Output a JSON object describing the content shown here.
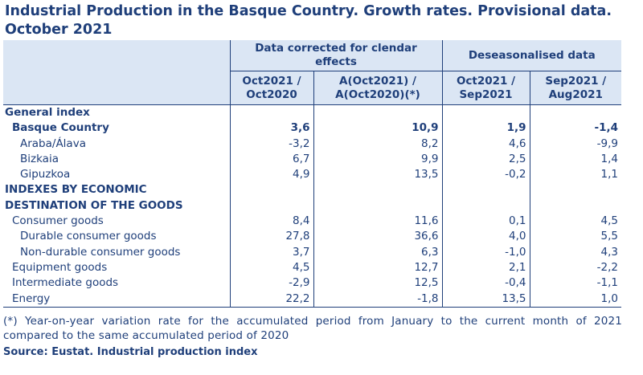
{
  "title": {
    "line1": "Industrial Production in the Basque Country. Growth rates. Provisional data.",
    "line2": "October 2021"
  },
  "header": {
    "group1": "Data corrected for clendar effects",
    "group2": "Deseasonalised data",
    "cols": [
      "Oct2021 / Oct2020",
      "A(Oct2021) / A(Oct2020)(*)",
      "Oct2021 / Sep2021",
      "Sep2021 / Aug2021"
    ]
  },
  "sections": {
    "general": "General index",
    "destination_line1": "INDEXES BY ECONOMIC",
    "destination_line2": "DESTINATION OF THE GOODS"
  },
  "rows": [
    {
      "label": "Basque Country",
      "values": [
        "3,6",
        "10,9",
        "1,9",
        "-1,4"
      ]
    },
    {
      "label": "Araba/Álava",
      "values": [
        "-3,2",
        "8,2",
        "4,6",
        "-9,9"
      ]
    },
    {
      "label": "Bizkaia",
      "values": [
        "6,7",
        "9,9",
        "2,5",
        "1,4"
      ]
    },
    {
      "label": "Gipuzkoa",
      "values": [
        "4,9",
        "13,5",
        "-0,2",
        "1,1"
      ]
    },
    {
      "label": "Consumer goods",
      "values": [
        "8,4",
        "11,6",
        "0,1",
        "4,5"
      ]
    },
    {
      "label": "Durable consumer goods",
      "values": [
        "27,8",
        "36,6",
        "4,0",
        "5,5"
      ]
    },
    {
      "label": "Non-durable consumer goods",
      "values": [
        "3,7",
        "6,3",
        "-1,0",
        "4,3"
      ]
    },
    {
      "label": "Equipment goods",
      "values": [
        "4,5",
        "12,7",
        "2,1",
        "-2,2"
      ]
    },
    {
      "label": "Intermediate goods",
      "values": [
        "-2,9",
        "12,5",
        "-0,4",
        "-1,1"
      ]
    },
    {
      "label": "Energy",
      "values": [
        "22,2",
        "-1,8",
        "13,5",
        "1,0"
      ]
    }
  ],
  "footnote": "(*) Year-on-year variation rate for the accumulated period from January to the current month of 2021 compared to the same accumulated period of 2020",
  "source": "Source: Eustat. Industrial production index"
}
